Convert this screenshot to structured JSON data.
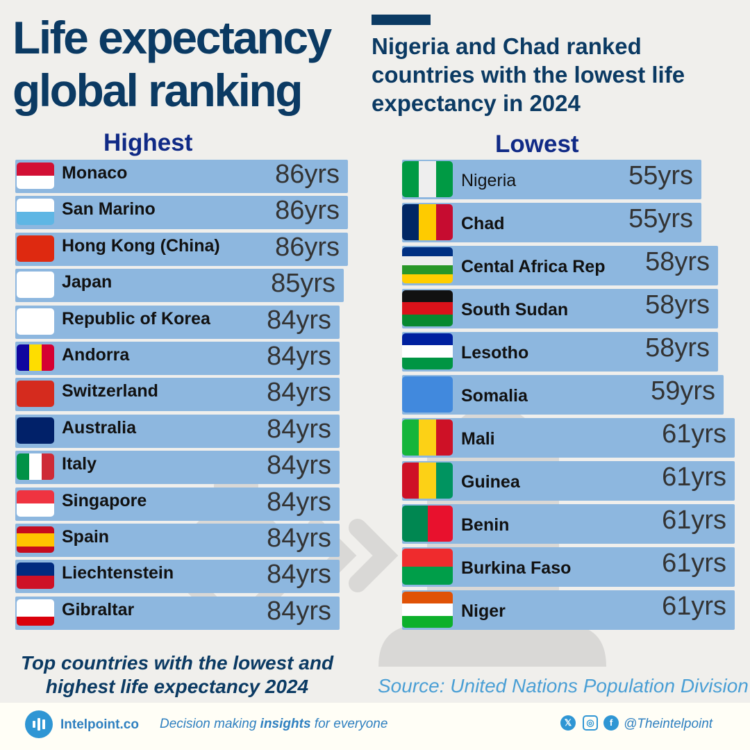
{
  "header": {
    "title_line1": "Life expectancy",
    "title_line2": "global ranking",
    "subtitle": "Nigeria and Chad ranked countries with the lowest life expectancy in 2024"
  },
  "chart_data": [
    {
      "type": "bar",
      "orientation": "horizontal",
      "title": "Highest",
      "unit": "yrs",
      "categories": [
        "Monaco",
        "San Marino",
        "Hong Kong (China)",
        "Japan",
        "Republic of Korea",
        "Andorra",
        "Switzerland",
        "Australia",
        "Italy",
        "Singapore",
        "Spain",
        "Liechtenstein",
        "Gibraltar"
      ],
      "values": [
        86,
        86,
        86,
        85,
        84,
        84,
        84,
        84,
        84,
        84,
        84,
        84,
        84
      ],
      "labels": [
        "86yrs",
        "86yrs",
        "86yrs",
        "85yrs",
        "84yrs",
        "84yrs",
        "84yrs",
        "84yrs",
        "84yrs",
        "84yrs",
        "84yrs",
        "84yrs",
        "84yrs"
      ],
      "flags": [
        [
          "v",
          "#d21034",
          "#ffffff"
        ],
        [
          "v",
          "#ffffff",
          "#5eb6e4"
        ],
        [
          "v",
          "#de2910"
        ],
        [
          "h",
          "#ffffff"
        ],
        [
          "h",
          "#ffffff"
        ],
        [
          "h",
          "#10069f",
          "#fedd00",
          "#d50032"
        ],
        [
          "h",
          "#d52b1e"
        ],
        [
          "h",
          "#012169"
        ],
        [
          "h",
          "#009246",
          "#ffffff",
          "#ce2b37"
        ],
        [
          "v",
          "#ef3340",
          "#ffffff"
        ],
        [
          "v",
          "#c60b1e",
          "#ffc400",
          "#ffc400",
          "#c60b1e"
        ],
        [
          "v",
          "#002b7f",
          "#ce1126"
        ],
        [
          "v",
          "#ffffff",
          "#ffffff",
          "#da000c"
        ]
      ],
      "bar_color": "#8db7df"
    },
    {
      "type": "bar",
      "orientation": "horizontal",
      "title": "Lowest",
      "unit": "yrs",
      "categories": [
        "Nigeria",
        "Chad",
        "Cental Africa Rep",
        "South Sudan",
        "Lesotho",
        "Somalia",
        "Mali",
        "Guinea",
        "Benin",
        "Burkina Faso",
        "Niger"
      ],
      "values": [
        55,
        55,
        58,
        58,
        58,
        59,
        61,
        61,
        61,
        61,
        61
      ],
      "labels": [
        "55yrs",
        "55yrs",
        "58yrs",
        "58yrs",
        "58yrs",
        "59yrs",
        "61yrs",
        "61yrs",
        "61yrs",
        "61yrs",
        "61yrs"
      ],
      "flags": [
        [
          "h",
          "#009a44",
          "#eeeeee",
          "#009a44"
        ],
        [
          "h",
          "#002664",
          "#fecb00",
          "#c60c30"
        ],
        [
          "v",
          "#003082",
          "#eeeeee",
          "#289728",
          "#ffce00"
        ],
        [
          "v",
          "#111111",
          "#da121a",
          "#078930"
        ],
        [
          "v",
          "#00209f",
          "#ffffff",
          "#009543"
        ],
        [
          "h",
          "#4189dd"
        ],
        [
          "h",
          "#14b53a",
          "#fcd116",
          "#ce1126"
        ],
        [
          "h",
          "#ce1126",
          "#fcd116",
          "#009460"
        ],
        [
          "h",
          "#008751",
          "#e8112d"
        ],
        [
          "v",
          "#ef2b2d",
          "#009e49"
        ],
        [
          "v",
          "#e05206",
          "#ffffff",
          "#0db02b"
        ]
      ],
      "bar_color": "#8db7df"
    }
  ],
  "footnote": "Top countries with the lowest and highest life expectancy 2024",
  "source": "Source: United Nations Population Division",
  "footer": {
    "brand": "Intelpoint.co",
    "tagline_pre": "Decision making ",
    "tagline_bold": "insights",
    "tagline_post": " for everyone",
    "handle": "@Theintelpoint",
    "icons": [
      "x-icon",
      "instagram-icon",
      "facebook-icon"
    ]
  }
}
